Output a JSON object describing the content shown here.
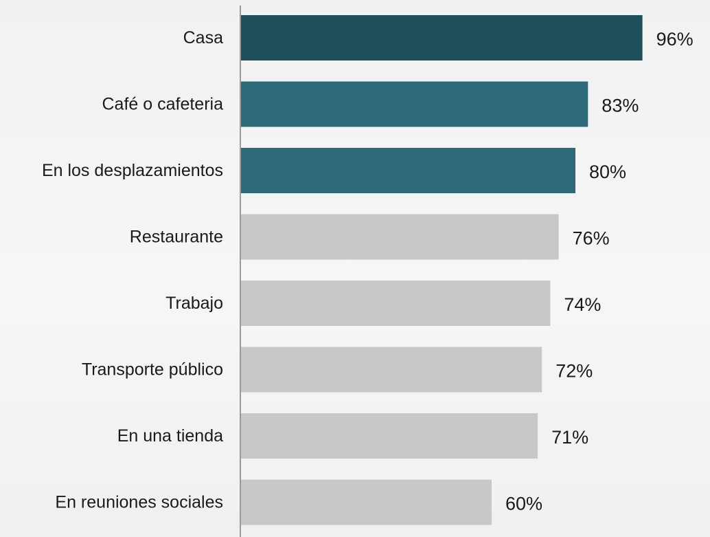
{
  "chart_data": {
    "type": "bar",
    "orientation": "horizontal",
    "categories": [
      "Casa",
      "Café o cafeteria",
      "En los desplazamientos",
      "Restaurante",
      "Trabajo",
      "Transporte público",
      "En una tienda",
      "En reuniones sociales"
    ],
    "values": [
      96,
      83,
      80,
      76,
      74,
      72,
      71,
      60
    ],
    "value_labels": [
      "96%",
      "83%",
      "80%",
      "76%",
      "74%",
      "72%",
      "71%",
      "60%"
    ],
    "unit": "%",
    "xlim": [
      0,
      100
    ],
    "grid": false,
    "legend": "none",
    "bar_colors": [
      "#1e4f5b",
      "#2d6b7a",
      "#2d6b7a",
      "#c8c8c8",
      "#c8c8c8",
      "#c8c8c8",
      "#c8c8c8",
      "#c8c8c8"
    ],
    "axis_color": "#9a9a9a"
  }
}
